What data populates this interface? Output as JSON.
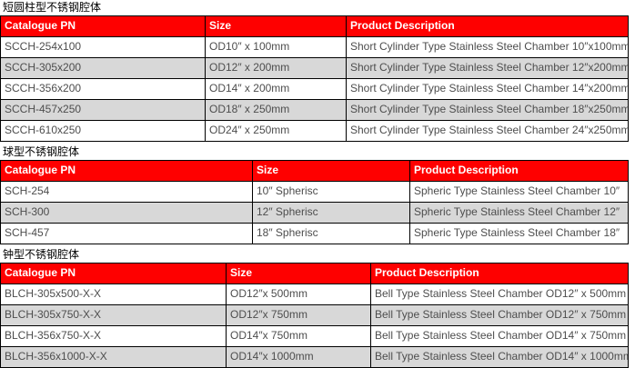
{
  "colors": {
    "header_bg": "#fe0000",
    "header_text": "#ffffff",
    "row_bg": "#ffffff",
    "row_alt_bg": "#d8d8d8",
    "border": "#000000",
    "body_text": "#4d4d4d"
  },
  "sections": [
    {
      "title": "短圆柱型不锈钢腔体",
      "columns": [
        "Catalogue PN",
        "Size",
        "Product Description"
      ],
      "rows": [
        [
          "SCCH-254x100",
          "OD10″ x 100mm",
          "Short Cylinder Type Stainless Steel Chamber 10″x100mm"
        ],
        [
          "SCCH-305x200",
          "OD12″ x 200mm",
          "Short Cylinder Type Stainless Steel Chamber 12″x200mm"
        ],
        [
          "SCCH-356x200",
          "OD14″ x 200mm",
          "Short Cylinder Type Stainless Steel Chamber 14″x200mm"
        ],
        [
          "SCCH-457x250",
          "OD18″ x 250mm",
          "Short Cylinder Type Stainless Steel Chamber 18″x250mm"
        ],
        [
          "SCCH-610x250",
          "OD24″ x 250mm",
          "Short Cylinder Type Stainless Steel Chamber 24″x250mm"
        ]
      ]
    },
    {
      "title": "球型不锈钢腔体",
      "columns": [
        "Catalogue PN",
        "Size",
        "Product Description"
      ],
      "rows": [
        [
          "SCH-254",
          "10″ Spherisc",
          "Spheric Type Stainless Steel Chamber 10″"
        ],
        [
          "SCH-300",
          "12″ Spherisc",
          "Spheric Type Stainless Steel Chamber 12″"
        ],
        [
          "SCH-457",
          "18″ Spherisc",
          "Spheric Type Stainless Steel Chamber 18″"
        ]
      ]
    },
    {
      "title": "钟型不锈钢腔体",
      "columns": [
        "Catalogue PN",
        "Size",
        "Product Description"
      ],
      "rows": [
        [
          "BLCH-305x500-X-X",
          "OD12″x 500mm",
          "Bell Type Stainless Steel Chamber OD12″ x 500mm"
        ],
        [
          "BLCH-305x750-X-X",
          "OD12″x 750mm",
          "Bell Type Stainless Steel Chamber OD12″ x 750mm"
        ],
        [
          "BLCH-356x750-X-X",
          "OD14″x 750mm",
          "Bell Type Stainless Steel Chamber OD14″ x 750mm"
        ],
        [
          "BLCH-356x1000-X-X",
          "OD14″x 1000mm",
          "Bell Type Stainless Steel Chamber OD14″ x 1000mm"
        ]
      ]
    }
  ]
}
